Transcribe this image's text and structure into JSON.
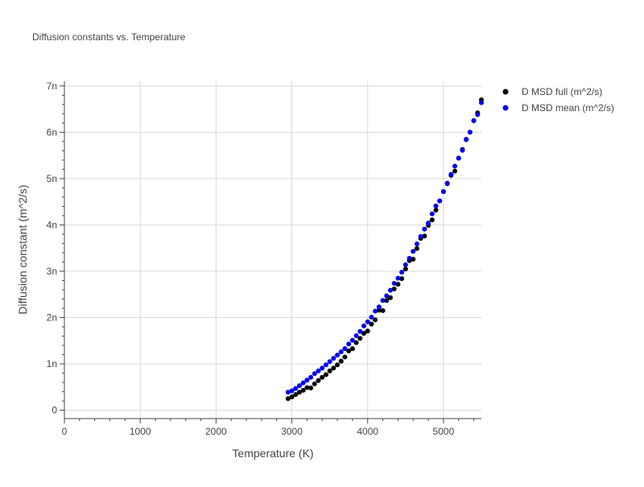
{
  "chart_data": {
    "type": "scatter",
    "title": "Diffusion constants vs. Temperature",
    "xlabel": "Temperature (K)",
    "ylabel": "Diffusion constant (m^2/s)",
    "xlim": [
      0,
      5500
    ],
    "ylim": [
      -0.18,
      7.1
    ],
    "x_ticks": [
      0,
      1000,
      2000,
      3000,
      4000,
      5000
    ],
    "x_tick_labels": [
      "0",
      "1000",
      "2000",
      "3000",
      "4000",
      "5000"
    ],
    "y_ticks": [
      0,
      1,
      2,
      3,
      4,
      5,
      6,
      7
    ],
    "y_tick_labels": [
      "0",
      "1n",
      "2n",
      "3n",
      "4n",
      "5n",
      "6n",
      "7n"
    ],
    "grid": true,
    "legend_position": "top-right, outside plot",
    "y_unit_scale": "n (1e-9)",
    "series": [
      {
        "name": "D MSD full (m^2/s)",
        "color": "#000000",
        "x": [
          2950,
          3000,
          3050,
          3100,
          3150,
          3200,
          3250,
          3300,
          3350,
          3400,
          3450,
          3500,
          3550,
          3600,
          3650,
          3700,
          3750,
          3800,
          3850,
          3900,
          3950,
          4000,
          4050,
          4100,
          4150,
          4200,
          4250,
          4300,
          4350,
          4400,
          4450,
          4500,
          4550,
          4600,
          4650,
          4700,
          4750,
          4800,
          4850,
          4900,
          4950,
          5000,
          5050,
          5100,
          5150,
          5200,
          5250,
          5300,
          5350,
          5400,
          5450,
          5500
        ],
        "y": [
          0.25,
          0.29,
          0.34,
          0.39,
          0.43,
          0.49,
          0.48,
          0.57,
          0.64,
          0.71,
          0.77,
          0.85,
          0.91,
          0.98,
          1.06,
          1.15,
          1.28,
          1.33,
          1.46,
          1.55,
          1.66,
          1.71,
          1.86,
          1.95,
          2.16,
          2.15,
          2.37,
          2.43,
          2.62,
          2.72,
          2.84,
          3.05,
          3.23,
          3.26,
          3.49,
          3.71,
          3.76,
          3.99,
          4.11,
          4.32,
          4.52,
          4.72,
          4.9,
          5.07,
          5.16,
          5.44,
          5.63,
          5.84,
          6.0,
          6.25,
          6.42,
          6.7
        ]
      },
      {
        "name": "D MSD mean (m^2/s)",
        "color": "#0000ee",
        "x": [
          2950,
          3000,
          3050,
          3100,
          3150,
          3200,
          3250,
          3300,
          3350,
          3400,
          3450,
          3500,
          3550,
          3600,
          3650,
          3700,
          3750,
          3800,
          3850,
          3900,
          3950,
          4000,
          4050,
          4100,
          4150,
          4200,
          4250,
          4300,
          4350,
          4400,
          4450,
          4500,
          4550,
          4600,
          4650,
          4700,
          4750,
          4800,
          4850,
          4900,
          4950,
          5000,
          5050,
          5100,
          5150,
          5200,
          5250,
          5300,
          5350,
          5400,
          5450,
          5500
        ],
        "y": [
          0.39,
          0.42,
          0.47,
          0.53,
          0.59,
          0.65,
          0.71,
          0.79,
          0.85,
          0.91,
          0.98,
          1.05,
          1.12,
          1.19,
          1.26,
          1.33,
          1.43,
          1.51,
          1.61,
          1.7,
          1.82,
          1.91,
          2.01,
          2.14,
          2.23,
          2.37,
          2.47,
          2.59,
          2.74,
          2.85,
          2.98,
          3.14,
          3.28,
          3.43,
          3.59,
          3.75,
          3.91,
          4.04,
          4.24,
          4.41,
          4.52,
          4.72,
          4.89,
          5.09,
          5.27,
          5.44,
          5.61,
          5.85,
          6.0,
          6.25,
          6.38,
          6.64
        ]
      }
    ]
  }
}
